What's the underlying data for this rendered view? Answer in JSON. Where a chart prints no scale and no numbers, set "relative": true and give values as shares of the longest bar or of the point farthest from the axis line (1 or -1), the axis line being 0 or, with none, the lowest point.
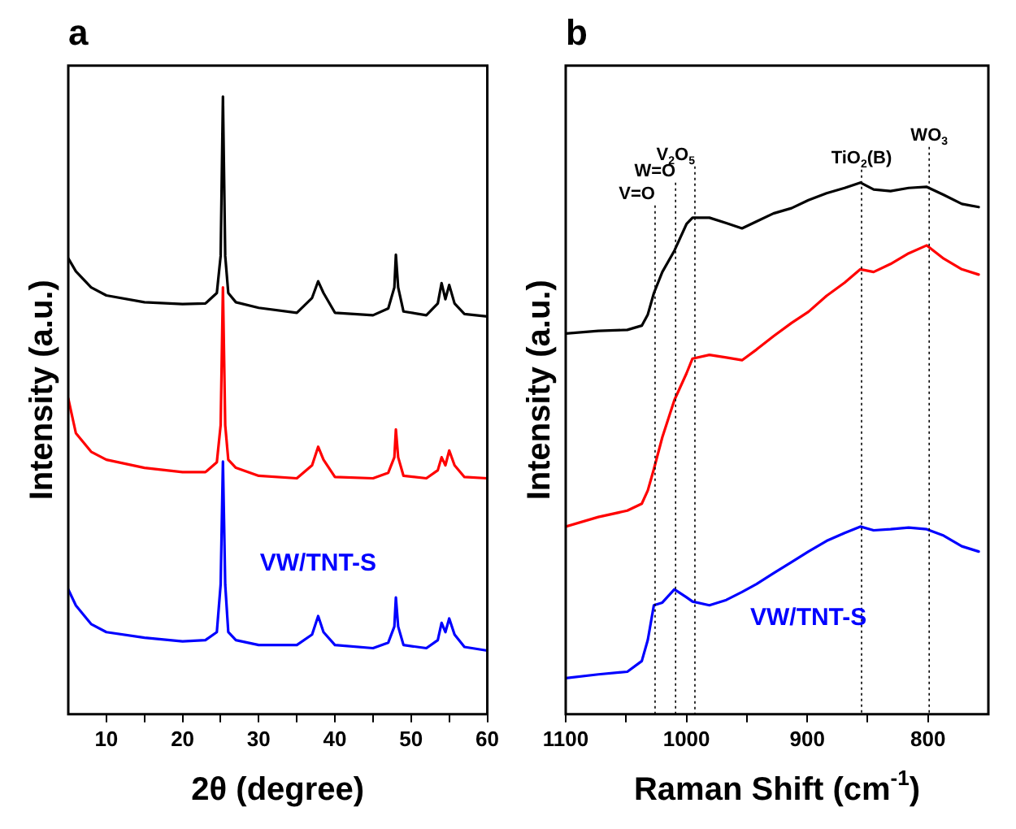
{
  "chart_data": [
    {
      "type": "line",
      "title": "a",
      "xlabel": "2θ (degree)",
      "ylabel": "Intensity (a.u.)",
      "relative": true,
      "tick_labels": "x",
      "grid": false,
      "legend": false,
      "marker": "none",
      "line_style": "solid",
      "xlim": [
        5,
        60
      ],
      "xticks": [
        10,
        {
          "value": 15,
          "label": null
        },
        20,
        {
          "value": 25,
          "label": null
        },
        30,
        {
          "value": 35,
          "label": null
        },
        40,
        {
          "value": 45,
          "label": null
        },
        50,
        {
          "value": 55,
          "label": null
        },
        60
      ],
      "x": [
        5,
        6,
        8,
        10,
        15,
        20,
        23,
        24.5,
        25,
        25.3,
        25.6,
        26,
        27,
        30,
        35,
        37,
        37.8,
        38.5,
        40,
        45,
        47,
        47.8,
        48,
        48.3,
        49,
        52,
        53.5,
        54,
        54.5,
        55,
        55.7,
        57,
        60
      ],
      "series": [
        {
          "color": "#000000",
          "values": [
            0.738,
            0.717,
            0.691,
            0.678,
            0.667,
            0.664,
            0.665,
            0.682,
            0.742,
            1.0,
            0.742,
            0.682,
            0.667,
            0.658,
            0.65,
            0.674,
            0.701,
            0.682,
            0.65,
            0.646,
            0.657,
            0.691,
            0.744,
            0.691,
            0.652,
            0.646,
            0.665,
            0.698,
            0.672,
            0.695,
            0.665,
            0.648,
            0.644
          ]
        },
        {
          "color": "#ff0000",
          "values": [
            0.511,
            0.455,
            0.425,
            0.412,
            0.399,
            0.392,
            0.392,
            0.408,
            0.468,
            0.691,
            0.468,
            0.412,
            0.399,
            0.386,
            0.382,
            0.403,
            0.433,
            0.412,
            0.384,
            0.382,
            0.391,
            0.416,
            0.461,
            0.416,
            0.386,
            0.382,
            0.395,
            0.416,
            0.403,
            0.427,
            0.403,
            0.384,
            0.382
          ]
        },
        {
          "name": "VW/TNT-S",
          "color": "#0000ff",
          "values": [
            0.202,
            0.176,
            0.146,
            0.133,
            0.124,
            0.118,
            0.12,
            0.133,
            0.21,
            0.409,
            0.21,
            0.133,
            0.12,
            0.112,
            0.112,
            0.129,
            0.159,
            0.133,
            0.112,
            0.107,
            0.116,
            0.142,
            0.189,
            0.142,
            0.112,
            0.107,
            0.12,
            0.148,
            0.133,
            0.155,
            0.129,
            0.109,
            0.103
          ]
        }
      ]
    },
    {
      "type": "line",
      "title": "b",
      "xlabel": "Raman Shift (cm$^{-1}$)",
      "ylabel": "Intensity (a.u.)",
      "relative": true,
      "tick_labels": "x",
      "grid": false,
      "legend": false,
      "marker": "none",
      "line_style": "solid",
      "xlim": [
        1100,
        750
      ],
      "xticks": [
        1100,
        {
          "value": 1050,
          "label": null
        },
        1000,
        {
          "value": 950,
          "label": null
        },
        900,
        {
          "value": 850,
          "label": null
        },
        800
      ],
      "x": [
        1100,
        1073,
        1049,
        1037,
        1032,
        1027,
        1020,
        1010,
        1000,
        995,
        981,
        967,
        954,
        942,
        928,
        913,
        899,
        884,
        869,
        856,
        845,
        831,
        816,
        801,
        787,
        772,
        758
      ],
      "series": [
        {
          "color": "#000000",
          "values": [
            0.716,
            0.721,
            0.723,
            0.731,
            0.752,
            0.792,
            0.832,
            0.872,
            0.922,
            0.934,
            0.934,
            0.924,
            0.914,
            0.927,
            0.942,
            0.952,
            0.967,
            0.98,
            0.99,
            1.0,
            0.987,
            0.984,
            0.99,
            0.992,
            0.977,
            0.96,
            0.954
          ]
        },
        {
          "color": "#ff0000",
          "values": [
            0.353,
            0.371,
            0.383,
            0.396,
            0.421,
            0.461,
            0.521,
            0.591,
            0.641,
            0.669,
            0.676,
            0.671,
            0.666,
            0.686,
            0.711,
            0.736,
            0.757,
            0.787,
            0.812,
            0.837,
            0.832,
            0.847,
            0.867,
            0.882,
            0.857,
            0.837,
            0.827
          ]
        },
        {
          "name": "VW/TNT-S",
          "color": "#0000ff",
          "values": [
            0.068,
            0.075,
            0.08,
            0.1,
            0.14,
            0.205,
            0.21,
            0.235,
            0.22,
            0.212,
            0.205,
            0.215,
            0.23,
            0.245,
            0.265,
            0.286,
            0.306,
            0.326,
            0.341,
            0.353,
            0.346,
            0.348,
            0.351,
            0.348,
            0.336,
            0.316,
            0.306
          ]
        }
      ],
      "ref_lines": [
        {
          "axis": "x",
          "value": 1026,
          "label": "V=O",
          "color": "#000000",
          "line_style": "dotted"
        },
        {
          "axis": "x",
          "value": 1009,
          "label": "W=O",
          "color": "#000000",
          "line_style": "dotted"
        },
        {
          "axis": "x",
          "value": 993,
          "label": "V$_{2}$O$_{5}$",
          "color": "#000000",
          "line_style": "dotted"
        },
        {
          "axis": "x",
          "value": 855,
          "label": "TiO$_{2}$(B)",
          "color": "#000000",
          "line_style": "dotted"
        },
        {
          "axis": "x",
          "value": 799,
          "label": "WO$_{3}$",
          "color": "#000000",
          "line_style": "dotted"
        }
      ]
    }
  ]
}
